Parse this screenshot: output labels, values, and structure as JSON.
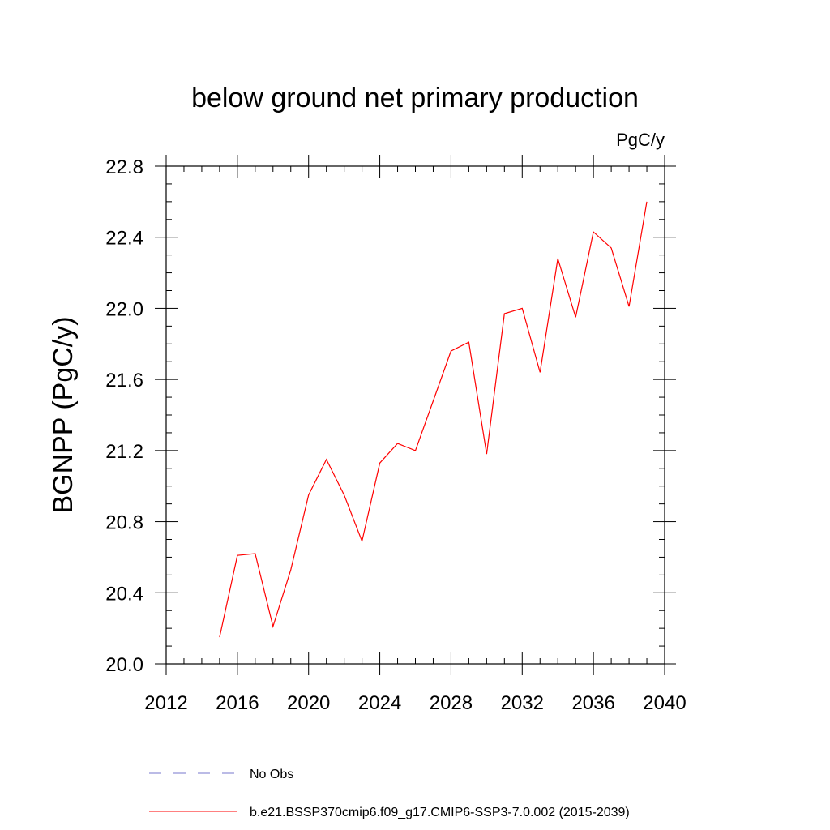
{
  "chart_data": {
    "type": "line",
    "title": "below ground net primary production",
    "units": "PgC/y",
    "ylabel": "BGNPP  (PgC/y)",
    "xlabel": "",
    "xlim": [
      2012,
      2040
    ],
    "ylim": [
      20.0,
      22.8
    ],
    "xticks": [
      2012,
      2016,
      2020,
      2024,
      2028,
      2032,
      2036,
      2040
    ],
    "yticks": [
      20.0,
      20.4,
      20.8,
      21.2,
      21.6,
      22.0,
      22.4,
      22.8
    ],
    "xtick_labels": [
      "2012",
      "2016",
      "2020",
      "2024",
      "2028",
      "2032",
      "2036",
      "2040"
    ],
    "ytick_labels": [
      "20.0",
      "20.4",
      "20.8",
      "21.2",
      "21.6",
      "22.0",
      "22.4",
      "22.8"
    ],
    "grid": false,
    "legend_placement": "bottom",
    "series": [
      {
        "name": "b.e21.BSSP370cmip6.f09_g17.CMIP6-SSP3-7.0.002 (2015-2039)",
        "color": "#ff0000",
        "style": "solid",
        "x": [
          2015,
          2016,
          2017,
          2018,
          2019,
          2020,
          2021,
          2022,
          2023,
          2024,
          2025,
          2026,
          2027,
          2028,
          2029,
          2030,
          2031,
          2032,
          2033,
          2034,
          2035,
          2036,
          2037,
          2038,
          2039
        ],
        "y": [
          20.15,
          20.61,
          20.62,
          20.21,
          20.53,
          20.95,
          21.15,
          20.95,
          20.69,
          21.13,
          21.24,
          21.2,
          21.48,
          21.76,
          21.81,
          21.18,
          21.97,
          22.0,
          21.64,
          22.28,
          21.95,
          22.43,
          22.34,
          22.01,
          22.6
        ]
      }
    ],
    "legend": [
      {
        "label": "No Obs",
        "color": "#7777cc",
        "style": "dashed"
      },
      {
        "label": "b.e21.BSSP370cmip6.f09_g17.CMIP6-SSP3-7.0.002 (2015-2039)",
        "color": "#ff0000",
        "style": "solid"
      }
    ]
  }
}
